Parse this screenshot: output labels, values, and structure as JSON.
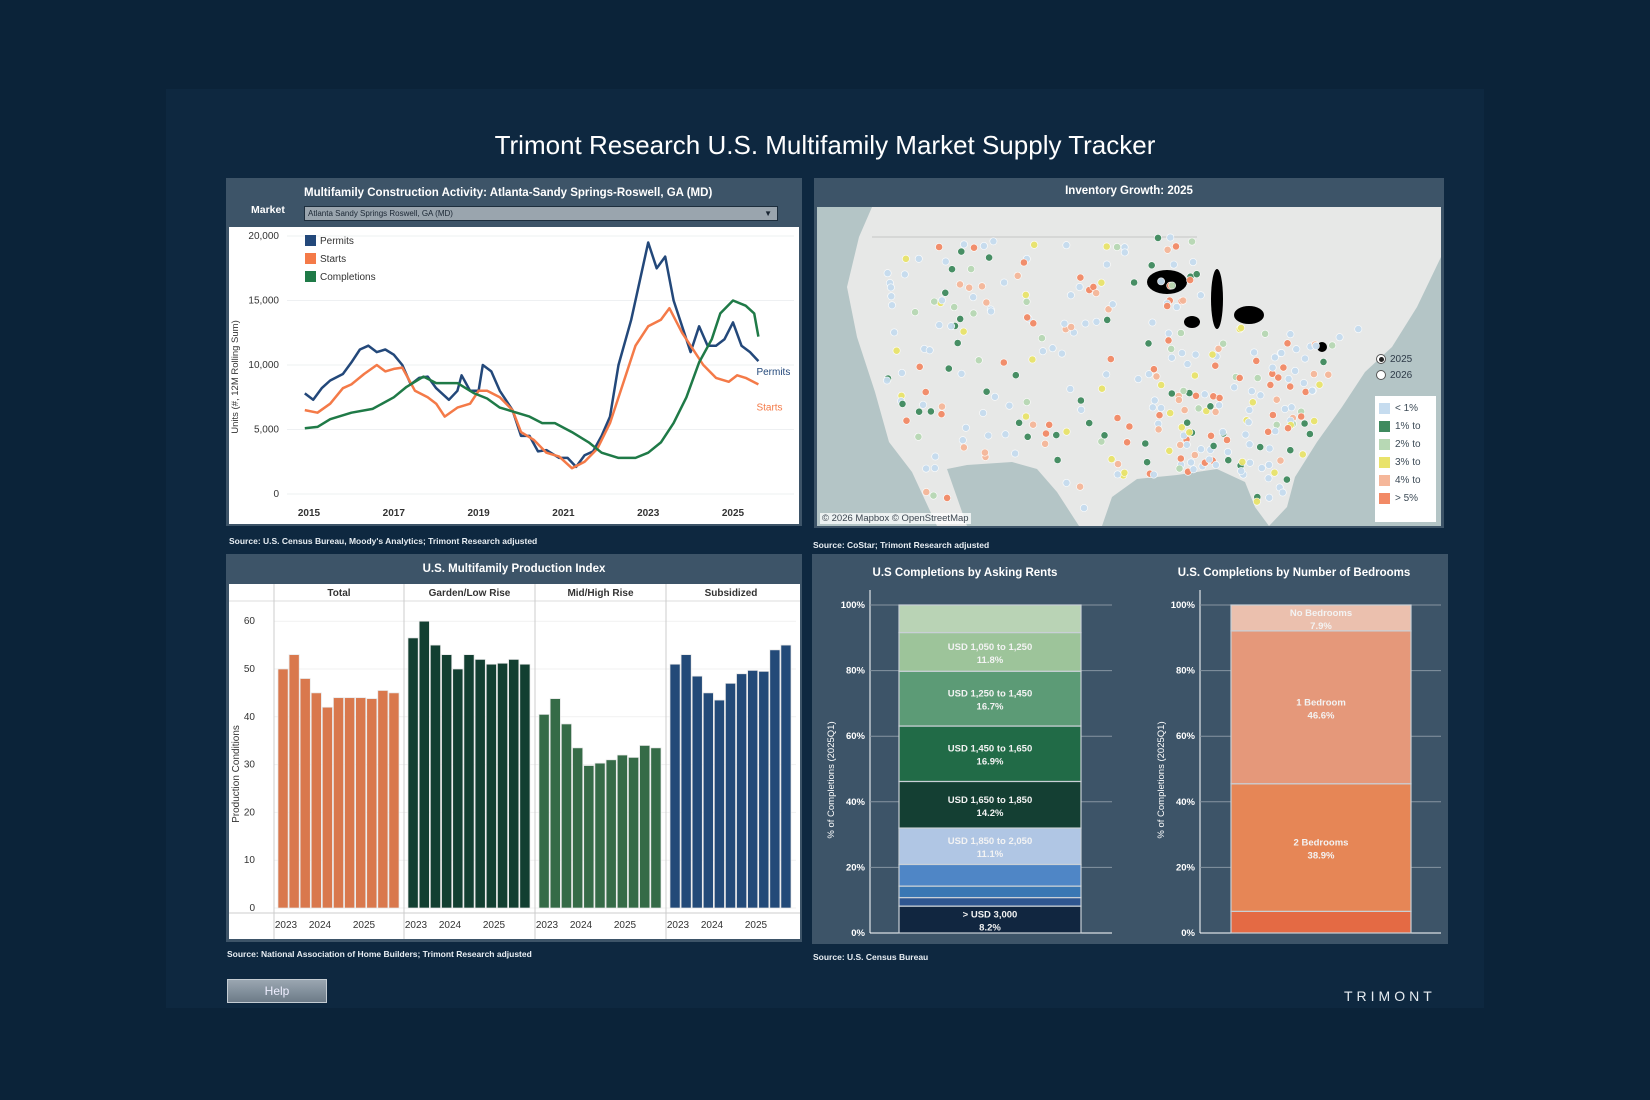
{
  "page_title": "Trimont Research U.S. Multifamily Market Supply Tracker",
  "help_label": "Help",
  "logo": "TRIMONT",
  "construction": {
    "title": "Multifamily Construction Activity: Atlanta-Sandy Springs-Roswell, GA (MD)",
    "market_label": "Market",
    "market_value": "Atlanta Sandy Springs Roswell, GA (MD)",
    "source": "Source: U.S. Census Bureau, Moody's Analytics; Trimont Research adjusted"
  },
  "map": {
    "title": "Inventory Growth: 2025",
    "attribution": "© 2026 Mapbox  © OpenStreetMap",
    "year_options": [
      {
        "label": "2025",
        "selected": true
      },
      {
        "label": "2026",
        "selected": false
      }
    ],
    "legend": [
      {
        "label": "< 1%",
        "color": "#c6dcef"
      },
      {
        "label": "1% to",
        "color": "#3f8a5e"
      },
      {
        "label": "2% to",
        "color": "#b7d8b4"
      },
      {
        "label": "3% to",
        "color": "#e9e36b"
      },
      {
        "label": "4% to",
        "color": "#f5b79a"
      },
      {
        "label": "> 5%",
        "color": "#f28a66"
      }
    ],
    "source": "Source:  CoStar; Trimont Research adjusted"
  },
  "production": {
    "title": "U.S. Multifamily Production Index",
    "source": "Source: National Association of Home Builders; Trimont Research adjusted"
  },
  "rents": {
    "title": "U.S Completions by Asking Rents"
  },
  "bedrooms": {
    "title": "U.S. Completions by Number of Bedrooms"
  },
  "bottom_source": "Source: U.S. Census Bureau",
  "chart_data": [
    {
      "type": "line",
      "title": "Multifamily Construction Activity: Atlanta-Sandy Springs-Roswell, GA (MD)",
      "xlabel": "",
      "ylabel": "Units (#, 12M Rolling Sum)",
      "ylim": [
        0,
        20000
      ],
      "yticks": [
        "0",
        "5,000",
        "10,000",
        "15,000",
        "20,000"
      ],
      "xticks": [
        "2015",
        "2017",
        "2019",
        "2021",
        "2023",
        "2025"
      ],
      "legend_position": "top-left",
      "series": [
        {
          "name": "Permits",
          "color": "#23487a",
          "end_label": "Permits",
          "points": [
            [
              2014.9,
              7800
            ],
            [
              2015.1,
              7300
            ],
            [
              2015.3,
              8200
            ],
            [
              2015.5,
              8800
            ],
            [
              2015.8,
              9300
            ],
            [
              2016.0,
              10200
            ],
            [
              2016.2,
              11200
            ],
            [
              2016.4,
              11500
            ],
            [
              2016.6,
              11000
            ],
            [
              2016.8,
              11200
            ],
            [
              2017.0,
              10800
            ],
            [
              2017.2,
              10000
            ],
            [
              2017.4,
              8500
            ],
            [
              2017.6,
              9000
            ],
            [
              2017.8,
              9100
            ],
            [
              2018.0,
              8200
            ],
            [
              2018.3,
              7300
            ],
            [
              2018.5,
              8000
            ],
            [
              2018.6,
              9200
            ],
            [
              2018.8,
              8000
            ],
            [
              2019.0,
              8000
            ],
            [
              2019.1,
              10000
            ],
            [
              2019.3,
              9500
            ],
            [
              2019.5,
              8000
            ],
            [
              2019.8,
              6500
            ],
            [
              2020.0,
              4500
            ],
            [
              2020.2,
              4500
            ],
            [
              2020.4,
              3300
            ],
            [
              2020.6,
              3400
            ],
            [
              2020.9,
              2800
            ],
            [
              2021.1,
              2800
            ],
            [
              2021.3,
              2100
            ],
            [
              2021.5,
              3000
            ],
            [
              2021.7,
              3300
            ],
            [
              2021.9,
              4500
            ],
            [
              2022.1,
              6000
            ],
            [
              2022.3,
              10000
            ],
            [
              2022.6,
              13500
            ],
            [
              2022.8,
              16500
            ],
            [
              2023.0,
              19500
            ],
            [
              2023.2,
              17500
            ],
            [
              2023.4,
              18400
            ],
            [
              2023.6,
              15000
            ],
            [
              2023.8,
              13000
            ],
            [
              2024.0,
              11000
            ],
            [
              2024.2,
              13000
            ],
            [
              2024.4,
              11500
            ],
            [
              2024.6,
              11500
            ],
            [
              2024.8,
              12000
            ],
            [
              2025.0,
              13300
            ],
            [
              2025.2,
              11500
            ],
            [
              2025.4,
              11000
            ],
            [
              2025.6,
              10300
            ]
          ]
        },
        {
          "name": "Starts",
          "color": "#f47a48",
          "end_label": "Starts",
          "points": [
            [
              2014.9,
              6500
            ],
            [
              2015.2,
              6300
            ],
            [
              2015.5,
              7000
            ],
            [
              2015.8,
              8200
            ],
            [
              2016.0,
              8500
            ],
            [
              2016.3,
              9300
            ],
            [
              2016.6,
              10000
            ],
            [
              2016.8,
              9500
            ],
            [
              2017.0,
              9700
            ],
            [
              2017.2,
              9800
            ],
            [
              2017.5,
              8000
            ],
            [
              2017.8,
              7500
            ],
            [
              2018.0,
              7000
            ],
            [
              2018.2,
              6000
            ],
            [
              2018.5,
              6700
            ],
            [
              2018.8,
              7000
            ],
            [
              2019.0,
              8000
            ],
            [
              2019.2,
              8000
            ],
            [
              2019.5,
              7500
            ],
            [
              2019.8,
              6500
            ],
            [
              2020.0,
              4800
            ],
            [
              2020.3,
              4200
            ],
            [
              2020.6,
              3200
            ],
            [
              2020.9,
              2900
            ],
            [
              2021.2,
              2000
            ],
            [
              2021.5,
              2500
            ],
            [
              2021.8,
              3500
            ],
            [
              2022.1,
              5500
            ],
            [
              2022.4,
              8500
            ],
            [
              2022.7,
              11500
            ],
            [
              2023.0,
              13000
            ],
            [
              2023.3,
              13500
            ],
            [
              2023.5,
              14400
            ],
            [
              2023.8,
              12500
            ],
            [
              2024.0,
              11500
            ],
            [
              2024.3,
              10000
            ],
            [
              2024.6,
              9000
            ],
            [
              2024.9,
              8700
            ],
            [
              2025.1,
              9200
            ],
            [
              2025.3,
              9000
            ],
            [
              2025.6,
              8500
            ]
          ]
        },
        {
          "name": "Completions",
          "color": "#1f7a47",
          "points": [
            [
              2014.9,
              5100
            ],
            [
              2015.2,
              5200
            ],
            [
              2015.5,
              5800
            ],
            [
              2016.0,
              6300
            ],
            [
              2016.5,
              6600
            ],
            [
              2017.0,
              7500
            ],
            [
              2017.3,
              8300
            ],
            [
              2017.7,
              9100
            ],
            [
              2018.0,
              8600
            ],
            [
              2018.5,
              8600
            ],
            [
              2018.9,
              7800
            ],
            [
              2019.2,
              7400
            ],
            [
              2019.5,
              6700
            ],
            [
              2019.8,
              6400
            ],
            [
              2020.2,
              6000
            ],
            [
              2020.5,
              5500
            ],
            [
              2020.8,
              5500
            ],
            [
              2021.2,
              4800
            ],
            [
              2021.6,
              4000
            ],
            [
              2021.9,
              3200
            ],
            [
              2022.3,
              2800
            ],
            [
              2022.7,
              2800
            ],
            [
              2023.0,
              3200
            ],
            [
              2023.3,
              4000
            ],
            [
              2023.6,
              5500
            ],
            [
              2023.9,
              7500
            ],
            [
              2024.2,
              10200
            ],
            [
              2024.5,
              12000
            ],
            [
              2024.7,
              14000
            ],
            [
              2025.0,
              15000
            ],
            [
              2025.3,
              14600
            ],
            [
              2025.5,
              14000
            ],
            [
              2025.6,
              12200
            ]
          ]
        }
      ]
    },
    {
      "type": "bar",
      "title": "U.S. Multifamily Production Index",
      "ylabel": "Production Conditions",
      "ylim": [
        0,
        60
      ],
      "yticks": [
        "0",
        "10",
        "20",
        "30",
        "40",
        "50",
        "60"
      ],
      "xticks": [
        "2023",
        "2024",
        "2025"
      ],
      "facets": [
        {
          "name": "Total",
          "color": "#d9784d",
          "values": [
            50,
            53,
            48,
            45,
            42,
            44,
            44,
            44,
            43.8,
            45.5,
            45
          ]
        },
        {
          "name": "Garden/Low Rise",
          "color": "#123f31",
          "values": [
            56.5,
            60,
            55,
            53,
            50,
            53,
            52,
            51,
            51.2,
            52,
            51
          ]
        },
        {
          "name": "Mid/High Rise",
          "color": "#356b47",
          "values": [
            40.5,
            43.8,
            38.5,
            33.5,
            29.8,
            30.3,
            31,
            32,
            31.5,
            34,
            33.5
          ]
        },
        {
          "name": "Subsidized",
          "color": "#234a78",
          "values": [
            51,
            53,
            48.5,
            45,
            43.5,
            47,
            49,
            49.7,
            49.5,
            54,
            55
          ]
        }
      ]
    },
    {
      "type": "bar",
      "stacked": true,
      "title": "U.S Completions by Asking Rents",
      "ylabel": "% of Completions (2025Q1)",
      "yticks": [
        "0%",
        "20%",
        "40%",
        "60%",
        "80%",
        "100%"
      ],
      "segments": [
        {
          "label": "> USD 3,000",
          "value": 8.2,
          "color": "#112640"
        },
        {
          "label": "",
          "value": 2.6,
          "color": "#2f5690"
        },
        {
          "label": "",
          "value": 3.5,
          "color": "#3a77b3"
        },
        {
          "label": "",
          "value": 6.6,
          "color": "#4f86c6"
        },
        {
          "label": "USD 1,850 to 2,050",
          "value": 11.1,
          "color": "#b0c6e4"
        },
        {
          "label": "USD 1,650 to 1,850",
          "value": 14.2,
          "color": "#143f33"
        },
        {
          "label": "USD 1,450 to 1,650",
          "value": 16.9,
          "color": "#216b47"
        },
        {
          "label": "USD 1,250 to 1,450",
          "value": 16.7,
          "color": "#5c9b76"
        },
        {
          "label": "USD 1,050 to 1,250",
          "value": 11.8,
          "color": "#9dc49a"
        },
        {
          "label": "",
          "value": 8.4,
          "color": "#b9d3b5"
        }
      ]
    },
    {
      "type": "bar",
      "stacked": true,
      "title": "U.S. Completions by Number of Bedrooms",
      "ylabel": "% of Completions (2025Q1)",
      "yticks": [
        "0%",
        "20%",
        "40%",
        "60%",
        "80%",
        "100%"
      ],
      "segments": [
        {
          "label": "",
          "value": 6.6,
          "color": "#e46a44"
        },
        {
          "label": "2 Bedrooms",
          "value": 38.9,
          "color": "#e68656"
        },
        {
          "label": "1 Bedroom",
          "value": 46.6,
          "color": "#e5987a"
        },
        {
          "label": "No Bedrooms",
          "value": 7.9,
          "color": "#ebc0ae"
        }
      ]
    }
  ]
}
